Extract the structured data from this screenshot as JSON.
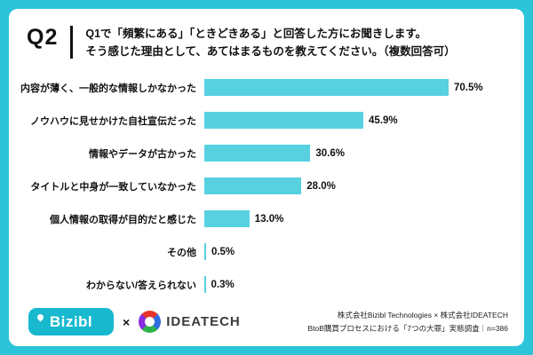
{
  "header": {
    "q_label": "Q2",
    "question_line1": "Q1で「頻繁にある」「ときどきある」と回答した方にお聞きします。",
    "question_line2": "そう感じた理由として、あてはまるものを教えてください。（複数回答可）"
  },
  "chart_data": {
    "type": "bar",
    "orientation": "horizontal",
    "title": "",
    "xlabel": "",
    "ylabel": "",
    "xlim": [
      0,
      80
    ],
    "grid": false,
    "legend": false,
    "bar_color": "#57D1E0",
    "categories": [
      "内容が薄く、一般的な情報しかなかった",
      "ノウハウに見せかけた自社宣伝だった",
      "情報やデータが古かった",
      "タイトルと中身が一致していなかった",
      "個人情報の取得が目的だと感じた",
      "その他",
      "わからない/答えられない"
    ],
    "values": [
      70.5,
      45.9,
      30.6,
      28.0,
      13.0,
      0.5,
      0.3
    ],
    "value_labels": [
      "70.5%",
      "45.9%",
      "30.6%",
      "28.0%",
      "13.0%",
      "0.5%",
      "0.3%"
    ]
  },
  "footer": {
    "bizibl_logo_text": "Bizibl",
    "cross": "×",
    "ideatech_logo_text": "IDEATECH",
    "credit_line1": "株式会社Bizibl Technologies × 株式会社IDEATECH",
    "credit_line2": "BtoB購買プロセスにおける「7つの大罪」実態調査｜n=386"
  },
  "colors": {
    "background": "#2BC4D9",
    "card": "#FFFFFF",
    "bar": "#57D1E0",
    "text": "#111111"
  }
}
